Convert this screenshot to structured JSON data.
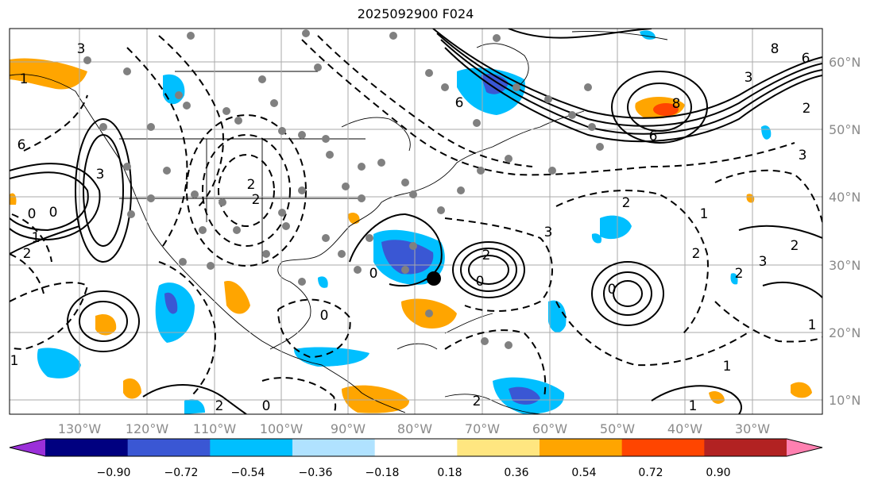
{
  "title": "2025092900 F024",
  "lon_labels": [
    "130°W",
    "120°W",
    "110°W",
    "100°W",
    "90°W",
    "80°W",
    "70°W",
    "60°W",
    "50°W",
    "40°W",
    "30°W"
  ],
  "lat_labels": [
    "60°N",
    "50°N",
    "40°N",
    "30°N",
    "20°N",
    "10°N"
  ],
  "colorbar": {
    "ticks": [
      "−0.90",
      "−0.72",
      "−0.54",
      "−0.36",
      "−0.18",
      "0.18",
      "0.36",
      "0.54",
      "0.72",
      "0.90"
    ],
    "colors": [
      "#9b30d9",
      "#000080",
      "#3a57d4",
      "#00bfff",
      "#b0e2ff",
      "#ffffff",
      "#ffe680",
      "#ffa500",
      "#ff4500",
      "#b22222",
      "#ff80b0"
    ]
  },
  "contour_labels": [
    "3",
    "6",
    "8",
    "6",
    "3",
    "6",
    "6",
    "8",
    "3",
    "2",
    "1",
    "2",
    "0",
    "2",
    "1",
    "3",
    "2",
    "0",
    "1",
    "2",
    "2",
    "0",
    "2",
    "1",
    "2",
    "3",
    "2",
    "1",
    "2",
    "3",
    "0",
    "1",
    "2",
    "0",
    "1",
    "0",
    "1",
    "0"
  ]
}
